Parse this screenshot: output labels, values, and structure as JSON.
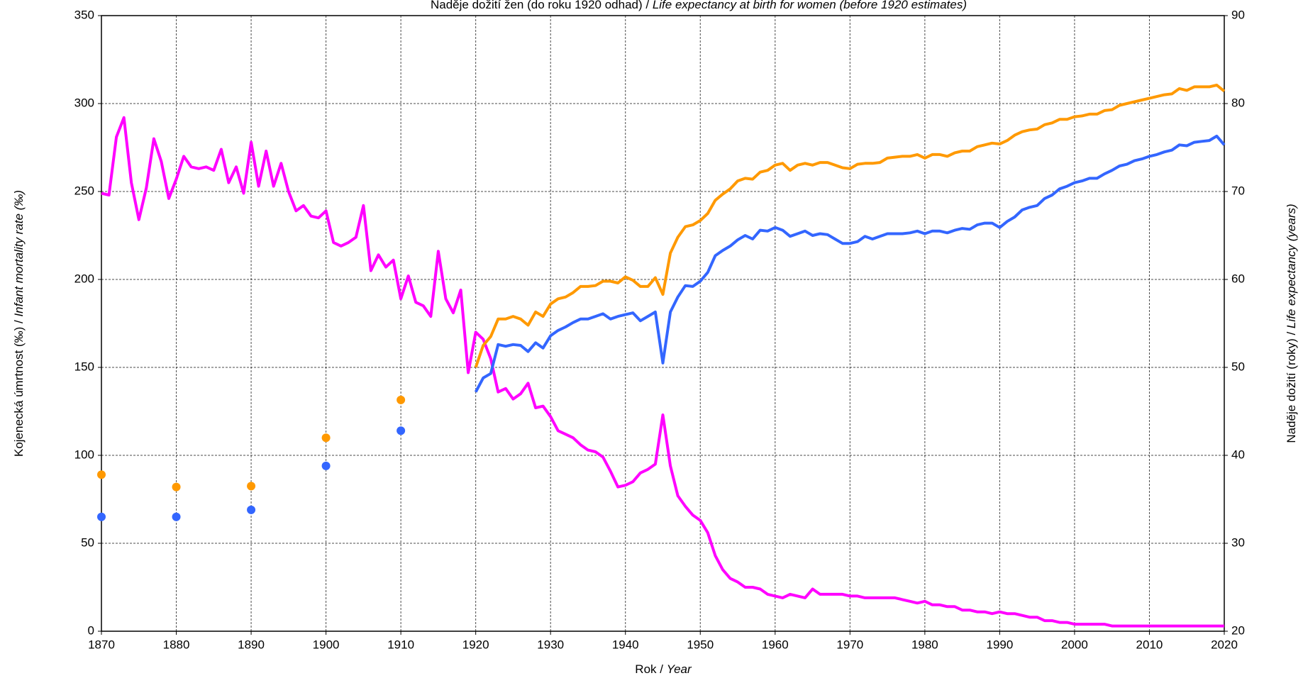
{
  "chart_data": {
    "type": "line",
    "title": [
      "Naděje dožití žen (do roku 1920 odhad) / ",
      "Life expectancy at birth for women (before 1920 estimates)"
    ],
    "x_label": [
      "Rok / ",
      "Year"
    ],
    "y_label": [
      "Kojenecká úmrtnost (‰) / ",
      "Infant mortality rate (‰)"
    ],
    "y2_label": [
      "Naděje dožití (roky) / ",
      "Life expectancy (years)"
    ],
    "x": [
      1870,
      1871,
      1872,
      1873,
      1874,
      1875,
      1876,
      1877,
      1878,
      1879,
      1880,
      1881,
      1882,
      1883,
      1884,
      1885,
      1886,
      1887,
      1888,
      1889,
      1890,
      1891,
      1892,
      1893,
      1894,
      1895,
      1896,
      1897,
      1898,
      1899,
      1900,
      1901,
      1902,
      1903,
      1904,
      1905,
      1906,
      1907,
      1908,
      1909,
      1910,
      1911,
      1912,
      1913,
      1914,
      1915,
      1916,
      1917,
      1918,
      1919,
      1920,
      1921,
      1922,
      1923,
      1924,
      1925,
      1926,
      1927,
      1928,
      1929,
      1930,
      1931,
      1932,
      1933,
      1934,
      1935,
      1936,
      1937,
      1938,
      1939,
      1940,
      1941,
      1942,
      1943,
      1944,
      1945,
      1946,
      1947,
      1948,
      1949,
      1950,
      1951,
      1952,
      1953,
      1954,
      1955,
      1956,
      1957,
      1958,
      1959,
      1960,
      1961,
      1962,
      1963,
      1964,
      1965,
      1966,
      1967,
      1968,
      1969,
      1970,
      1971,
      1972,
      1973,
      1974,
      1975,
      1976,
      1977,
      1978,
      1979,
      1980,
      1981,
      1982,
      1983,
      1984,
      1985,
      1986,
      1987,
      1988,
      1989,
      1990,
      1991,
      1992,
      1993,
      1994,
      1995,
      1996,
      1997,
      1998,
      1999,
      2000,
      2001,
      2002,
      2003,
      2004,
      2005,
      2006,
      2007,
      2008,
      2009,
      2010,
      2011,
      2012,
      2013,
      2014,
      2015,
      2016,
      2017,
      2018,
      2019,
      2020
    ],
    "series": [
      {
        "color": "#ff00ff",
        "values": [
          249,
          248,
          281,
          292,
          255,
          234,
          252,
          280,
          267,
          246,
          257,
          270,
          264,
          263,
          264,
          262,
          274,
          255,
          264,
          249,
          278,
          253,
          273,
          253,
          266,
          250,
          239,
          242,
          236,
          235,
          239,
          221,
          219,
          221,
          224,
          242,
          205,
          214,
          207,
          211,
          189,
          202,
          187,
          185,
          179,
          216,
          189,
          181,
          194,
          147,
          170,
          166,
          155,
          136,
          138,
          132,
          135,
          141,
          127,
          128,
          122,
          114,
          112,
          110,
          106,
          103,
          102,
          99,
          91,
          82,
          83,
          85,
          90,
          92,
          95,
          123,
          94,
          77,
          71,
          66,
          63,
          56,
          43,
          35,
          30,
          28,
          25,
          25,
          24,
          21,
          20,
          19,
          21,
          20,
          19,
          24,
          21,
          21,
          21,
          21,
          20,
          20,
          19,
          19,
          19,
          19,
          19,
          18,
          17,
          16,
          17,
          15,
          15,
          14,
          14,
          12,
          12,
          11,
          11,
          10,
          11,
          10,
          10,
          9,
          8,
          8,
          6,
          6,
          5,
          5,
          4,
          4,
          4,
          4,
          4,
          3,
          3,
          3,
          3,
          3,
          3,
          3,
          3,
          3,
          3,
          3,
          3,
          3,
          3,
          3,
          3
        ]
      },
      {
        "color": "#ff9900",
        "axis": "y2",
        "values": [
          37.8,
          null,
          null,
          null,
          null,
          null,
          null,
          null,
          null,
          null,
          36.4,
          null,
          null,
          null,
          null,
          null,
          null,
          null,
          null,
          null,
          36.5,
          null,
          null,
          null,
          null,
          null,
          null,
          null,
          null,
          null,
          42,
          null,
          null,
          null,
          null,
          null,
          null,
          null,
          null,
          null,
          46.3,
          null,
          null,
          null,
          null,
          null,
          null,
          null,
          null,
          null,
          50,
          52.5,
          53.5,
          55.5,
          55.5,
          55.8,
          55.5,
          54.8,
          56.3,
          55.8,
          57.2,
          57.8,
          58,
          58.5,
          59.2,
          59.2,
          59.3,
          59.8,
          59.8,
          59.6,
          60.3,
          59.9,
          59.2,
          59.2,
          60.2,
          58.3,
          63,
          64.8,
          66,
          66.2,
          66.7,
          67.5,
          69,
          69.7,
          70.3,
          71.2,
          71.5,
          71.4,
          72.2,
          72.4,
          73,
          73.2,
          72.4,
          73,
          73.2,
          73,
          73.3,
          73.3,
          73,
          72.7,
          72.6,
          73.1,
          73.2,
          73.2,
          73.3,
          73.8,
          73.9,
          74,
          74,
          74.2,
          73.8,
          74.2,
          74.2,
          74,
          74.4,
          74.6,
          74.6,
          75.1,
          75.3,
          75.5,
          75.4,
          75.8,
          76.4,
          76.8,
          77,
          77.1,
          77.6,
          77.8,
          78.2,
          78.2,
          78.5,
          78.6,
          78.8,
          78.8,
          79.2,
          79.3,
          79.8,
          80,
          80.2,
          80.4,
          80.6,
          80.8,
          81,
          81.1,
          81.7,
          81.5,
          81.9,
          81.9,
          81.9,
          82.1,
          81.4
        ]
      },
      {
        "color": "#3366ff",
        "axis": "y2",
        "values": [
          33,
          null,
          null,
          null,
          null,
          null,
          null,
          null,
          null,
          null,
          33,
          null,
          null,
          null,
          null,
          null,
          null,
          null,
          null,
          null,
          33.8,
          null,
          null,
          null,
          null,
          null,
          null,
          null,
          null,
          null,
          38.8,
          null,
          null,
          null,
          null,
          null,
          null,
          null,
          null,
          null,
          42.8,
          null,
          null,
          null,
          null,
          null,
          null,
          null,
          null,
          null,
          47.2,
          48.8,
          49.3,
          52.6,
          52.4,
          52.6,
          52.5,
          51.8,
          52.8,
          52.2,
          53.6,
          54.2,
          54.6,
          55.1,
          55.5,
          55.5,
          55.8,
          56.1,
          55.5,
          55.8,
          56,
          56.2,
          55.3,
          55.8,
          56.3,
          50.5,
          56.3,
          58,
          59.3,
          59.2,
          59.8,
          60.8,
          62.7,
          63.3,
          63.8,
          64.5,
          65,
          64.6,
          65.6,
          65.5,
          65.9,
          65.6,
          64.9,
          65.2,
          65.5,
          65,
          65.2,
          65.1,
          64.6,
          64.1,
          64.1,
          64.3,
          64.9,
          64.6,
          64.9,
          65.2,
          65.2,
          65.2,
          65.3,
          65.5,
          65.2,
          65.5,
          65.5,
          65.3,
          65.6,
          65.8,
          65.7,
          66.2,
          66.4,
          66.4,
          65.9,
          66.6,
          67.1,
          67.9,
          68.2,
          68.4,
          69.2,
          69.6,
          70.3,
          70.6,
          71,
          71.2,
          71.5,
          71.5,
          72,
          72.4,
          72.9,
          73.1,
          73.5,
          73.7,
          74,
          74.2,
          74.5,
          74.7,
          75.3,
          75.2,
          75.6,
          75.7,
          75.8,
          76.3,
          75.3
        ]
      }
    ],
    "xlim": [
      1870,
      2020
    ],
    "xticks": [
      1870,
      1880,
      1890,
      1900,
      1910,
      1920,
      1930,
      1940,
      1950,
      1960,
      1970,
      1980,
      1990,
      2000,
      2010,
      2020
    ],
    "ylim": [
      0,
      350
    ],
    "yticks": [
      0,
      50,
      100,
      150,
      200,
      250,
      300,
      350
    ],
    "y2lim": [
      20,
      90
    ],
    "y2ticks": [
      20,
      30,
      40,
      50,
      60,
      70,
      80,
      90
    ],
    "grid": true
  }
}
